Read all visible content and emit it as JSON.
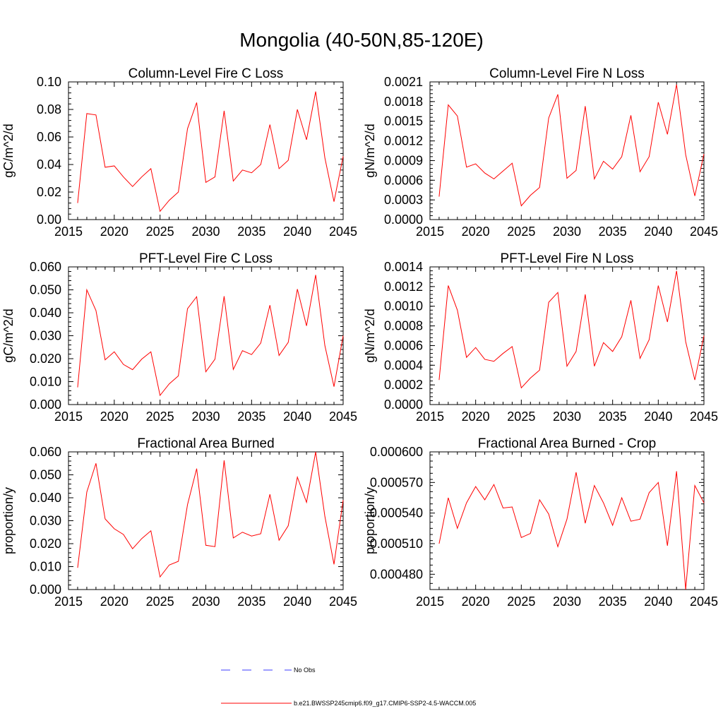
{
  "title": "Mongolia (40-50N,85-120E)",
  "colors": {
    "model": "#ff0000",
    "obs": "#3b3bff"
  },
  "legend": [
    {
      "label": "No Obs",
      "style": "dashed",
      "color": "#3b3bff"
    },
    {
      "label": "b.e21.BWSSP245cmip6.f09_g17.CMIP6-SSP2-4.5-WACCM.005",
      "style": "solid",
      "color": "#ff0000"
    }
  ],
  "chart_data": [
    {
      "type": "line",
      "title": "Column-Level Fire C Loss",
      "ylabel": "gC/m^2/d",
      "xlabel": "",
      "xlim": [
        2015,
        2045
      ],
      "ylim": [
        0,
        0.1
      ],
      "xticks": [
        2015,
        2020,
        2025,
        2030,
        2035,
        2040,
        2045
      ],
      "yticks": [
        0,
        0.02,
        0.04,
        0.06,
        0.08,
        0.1
      ],
      "ytick_labels": [
        "0.00",
        "0.02",
        "0.04",
        "0.06",
        "0.08",
        "0.10"
      ],
      "series": [
        {
          "name": "b.e21.BWSSP245cmip6.f09_g17.CMIP6-SSP2-4.5-WACCM.005",
          "x": [
            2016,
            2017,
            2018,
            2019,
            2020,
            2021,
            2022,
            2023,
            2024,
            2025,
            2026,
            2027,
            2028,
            2029,
            2030,
            2031,
            2032,
            2033,
            2034,
            2035,
            2036,
            2037,
            2038,
            2039,
            2040,
            2041,
            2042,
            2043,
            2044,
            2045
          ],
          "values": [
            0.012,
            0.077,
            0.076,
            0.038,
            0.039,
            0.031,
            0.024,
            0.031,
            0.037,
            0.006,
            0.014,
            0.02,
            0.066,
            0.085,
            0.027,
            0.031,
            0.079,
            0.028,
            0.036,
            0.034,
            0.04,
            0.069,
            0.037,
            0.043,
            0.08,
            0.058,
            0.093,
            0.045,
            0.013,
            0.046
          ]
        }
      ]
    },
    {
      "type": "line",
      "title": "Column-Level Fire N Loss",
      "ylabel": "gN/m^2/d",
      "xlabel": "",
      "xlim": [
        2015,
        2045
      ],
      "ylim": [
        0,
        0.0021
      ],
      "xticks": [
        2015,
        2020,
        2025,
        2030,
        2035,
        2040,
        2045
      ],
      "yticks": [
        0,
        0.0003,
        0.0006,
        0.0009,
        0.0012,
        0.0015,
        0.0018,
        0.0021
      ],
      "ytick_labels": [
        "0.0000",
        "0.0003",
        "0.0006",
        "0.0009",
        "0.0012",
        "0.0015",
        "0.0018",
        "0.0021"
      ],
      "series": [
        {
          "name": "b.e21.BWSSP245cmip6.f09_g17.CMIP6-SSP2-4.5-WACCM.005",
          "x": [
            2016,
            2017,
            2018,
            2019,
            2020,
            2021,
            2022,
            2023,
            2024,
            2025,
            2026,
            2027,
            2028,
            2029,
            2030,
            2031,
            2032,
            2033,
            2034,
            2035,
            2036,
            2037,
            2038,
            2039,
            2040,
            2041,
            2042,
            2043,
            2044,
            2045
          ],
          "values": [
            0.00035,
            0.00175,
            0.00158,
            0.0008,
            0.00085,
            0.00071,
            0.00062,
            0.00074,
            0.00086,
            0.00021,
            0.00037,
            0.00049,
            0.00155,
            0.00191,
            0.00063,
            0.00075,
            0.00173,
            0.00062,
            0.00089,
            0.00077,
            0.00096,
            0.00159,
            0.00073,
            0.00096,
            0.00179,
            0.0013,
            0.00206,
            0.00099,
            0.00036,
            0.001
          ]
        }
      ]
    },
    {
      "type": "line",
      "title": "PFT-Level Fire C Loss",
      "ylabel": "gC/m^2/d",
      "xlabel": "",
      "xlim": [
        2015,
        2045
      ],
      "ylim": [
        0,
        0.06
      ],
      "xticks": [
        2015,
        2020,
        2025,
        2030,
        2035,
        2040,
        2045
      ],
      "yticks": [
        0,
        0.01,
        0.02,
        0.03,
        0.04,
        0.05,
        0.06
      ],
      "ytick_labels": [
        "0.000",
        "0.010",
        "0.020",
        "0.030",
        "0.040",
        "0.050",
        "0.060"
      ],
      "series": [
        {
          "name": "b.e21.BWSSP245cmip6.f09_g17.CMIP6-SSP2-4.5-WACCM.005",
          "x": [
            2016,
            2017,
            2018,
            2019,
            2020,
            2021,
            2022,
            2023,
            2024,
            2025,
            2026,
            2027,
            2028,
            2029,
            2030,
            2031,
            2032,
            2033,
            2034,
            2035,
            2036,
            2037,
            2038,
            2039,
            2040,
            2041,
            2042,
            2043,
            2044,
            2045
          ],
          "values": [
            0.0075,
            0.05,
            0.041,
            0.0195,
            0.023,
            0.0175,
            0.0152,
            0.0198,
            0.023,
            0.004,
            0.009,
            0.0125,
            0.0418,
            0.047,
            0.0143,
            0.0198,
            0.0472,
            0.0153,
            0.0235,
            0.0218,
            0.0268,
            0.0433,
            0.0214,
            0.0271,
            0.0503,
            0.0343,
            0.0565,
            0.0258,
            0.0078,
            0.03
          ]
        }
      ]
    },
    {
      "type": "line",
      "title": "PFT-Level Fire N Loss",
      "ylabel": "gN/m^2/d",
      "xlabel": "",
      "xlim": [
        2015,
        2045
      ],
      "ylim": [
        0,
        0.0014
      ],
      "xticks": [
        2015,
        2020,
        2025,
        2030,
        2035,
        2040,
        2045
      ],
      "yticks": [
        0,
        0.0002,
        0.0004,
        0.0006,
        0.0008,
        0.001,
        0.0012,
        0.0014
      ],
      "ytick_labels": [
        "0.0000",
        "0.0002",
        "0.0004",
        "0.0006",
        "0.0008",
        "0.0010",
        "0.0012",
        "0.0014"
      ],
      "series": [
        {
          "name": "b.e21.BWSSP245cmip6.f09_g17.CMIP6-SSP2-4.5-WACCM.005",
          "x": [
            2016,
            2017,
            2018,
            2019,
            2020,
            2021,
            2022,
            2023,
            2024,
            2025,
            2026,
            2027,
            2028,
            2029,
            2030,
            2031,
            2032,
            2033,
            2034,
            2035,
            2036,
            2037,
            2038,
            2039,
            2040,
            2041,
            2042,
            2043,
            2044,
            2045
          ],
          "values": [
            0.00025,
            0.00121,
            0.00096,
            0.00048,
            0.00058,
            0.00046,
            0.00044,
            0.00052,
            0.00059,
            0.00017,
            0.00027,
            0.00035,
            0.00104,
            0.00114,
            0.00039,
            0.00054,
            0.00112,
            0.00039,
            0.00063,
            0.00054,
            0.00069,
            0.00106,
            0.00047,
            0.00066,
            0.00121,
            0.00084,
            0.00136,
            0.00064,
            0.00025,
            0.0007
          ]
        }
      ]
    },
    {
      "type": "line",
      "title": "Fractional Area Burned",
      "ylabel": "proportion/y",
      "xlabel": "",
      "xlim": [
        2015,
        2045
      ],
      "ylim": [
        0,
        0.06
      ],
      "xticks": [
        2015,
        2020,
        2025,
        2030,
        2035,
        2040,
        2045
      ],
      "yticks": [
        0,
        0.01,
        0.02,
        0.03,
        0.04,
        0.05,
        0.06
      ],
      "ytick_labels": [
        "0.000",
        "0.010",
        "0.020",
        "0.030",
        "0.040",
        "0.050",
        "0.060"
      ],
      "series": [
        {
          "name": "b.e21.BWSSP245cmip6.f09_g17.CMIP6-SSP2-4.5-WACCM.005",
          "x": [
            2016,
            2017,
            2018,
            2019,
            2020,
            2021,
            2022,
            2023,
            2024,
            2025,
            2026,
            2027,
            2028,
            2029,
            2030,
            2031,
            2032,
            2033,
            2034,
            2035,
            2036,
            2037,
            2038,
            2039,
            2040,
            2041,
            2042,
            2043,
            2044,
            2045
          ],
          "values": [
            0.0095,
            0.0425,
            0.055,
            0.0308,
            0.0265,
            0.024,
            0.0178,
            0.0222,
            0.0256,
            0.0055,
            0.0107,
            0.0123,
            0.037,
            0.0527,
            0.0193,
            0.0187,
            0.0563,
            0.0225,
            0.025,
            0.0233,
            0.0243,
            0.0415,
            0.0215,
            0.0278,
            0.049,
            0.038,
            0.06,
            0.032,
            0.011,
            0.039
          ]
        }
      ]
    },
    {
      "type": "line",
      "title": "Fractional Area Burned - Crop",
      "ylabel": "proportion/y",
      "xlabel": "",
      "xlim": [
        2015,
        2045
      ],
      "ylim": [
        0.000465,
        0.0006
      ],
      "xticks": [
        2015,
        2020,
        2025,
        2030,
        2035,
        2040,
        2045
      ],
      "yticks": [
        0.00048,
        0.00051,
        0.00054,
        0.00057,
        0.0006
      ],
      "ytick_labels": [
        "0.000480",
        "0.000510",
        "0.000540",
        "0.000570",
        "0.000600"
      ],
      "series": [
        {
          "name": "b.e21.BWSSP245cmip6.f09_g17.CMIP6-SSP2-4.5-WACCM.005",
          "x": [
            2016,
            2017,
            2018,
            2019,
            2020,
            2021,
            2022,
            2023,
            2024,
            2025,
            2026,
            2027,
            2028,
            2029,
            2030,
            2031,
            2032,
            2033,
            2034,
            2035,
            2036,
            2037,
            2038,
            2039,
            2040,
            2041,
            2042,
            2043,
            2044,
            2045
          ],
          "values": [
            0.00051,
            0.000555,
            0.000525,
            0.00055,
            0.000566,
            0.000553,
            0.000568,
            0.000545,
            0.000546,
            0.000516,
            0.00052,
            0.000553,
            0.000539,
            0.000507,
            0.000534,
            0.00058,
            0.00053,
            0.000567,
            0.00055,
            0.000528,
            0.000555,
            0.000532,
            0.000534,
            0.00056,
            0.00057,
            0.000508,
            0.000581,
            0.000465,
            0.000567,
            0.00055
          ]
        }
      ]
    }
  ]
}
